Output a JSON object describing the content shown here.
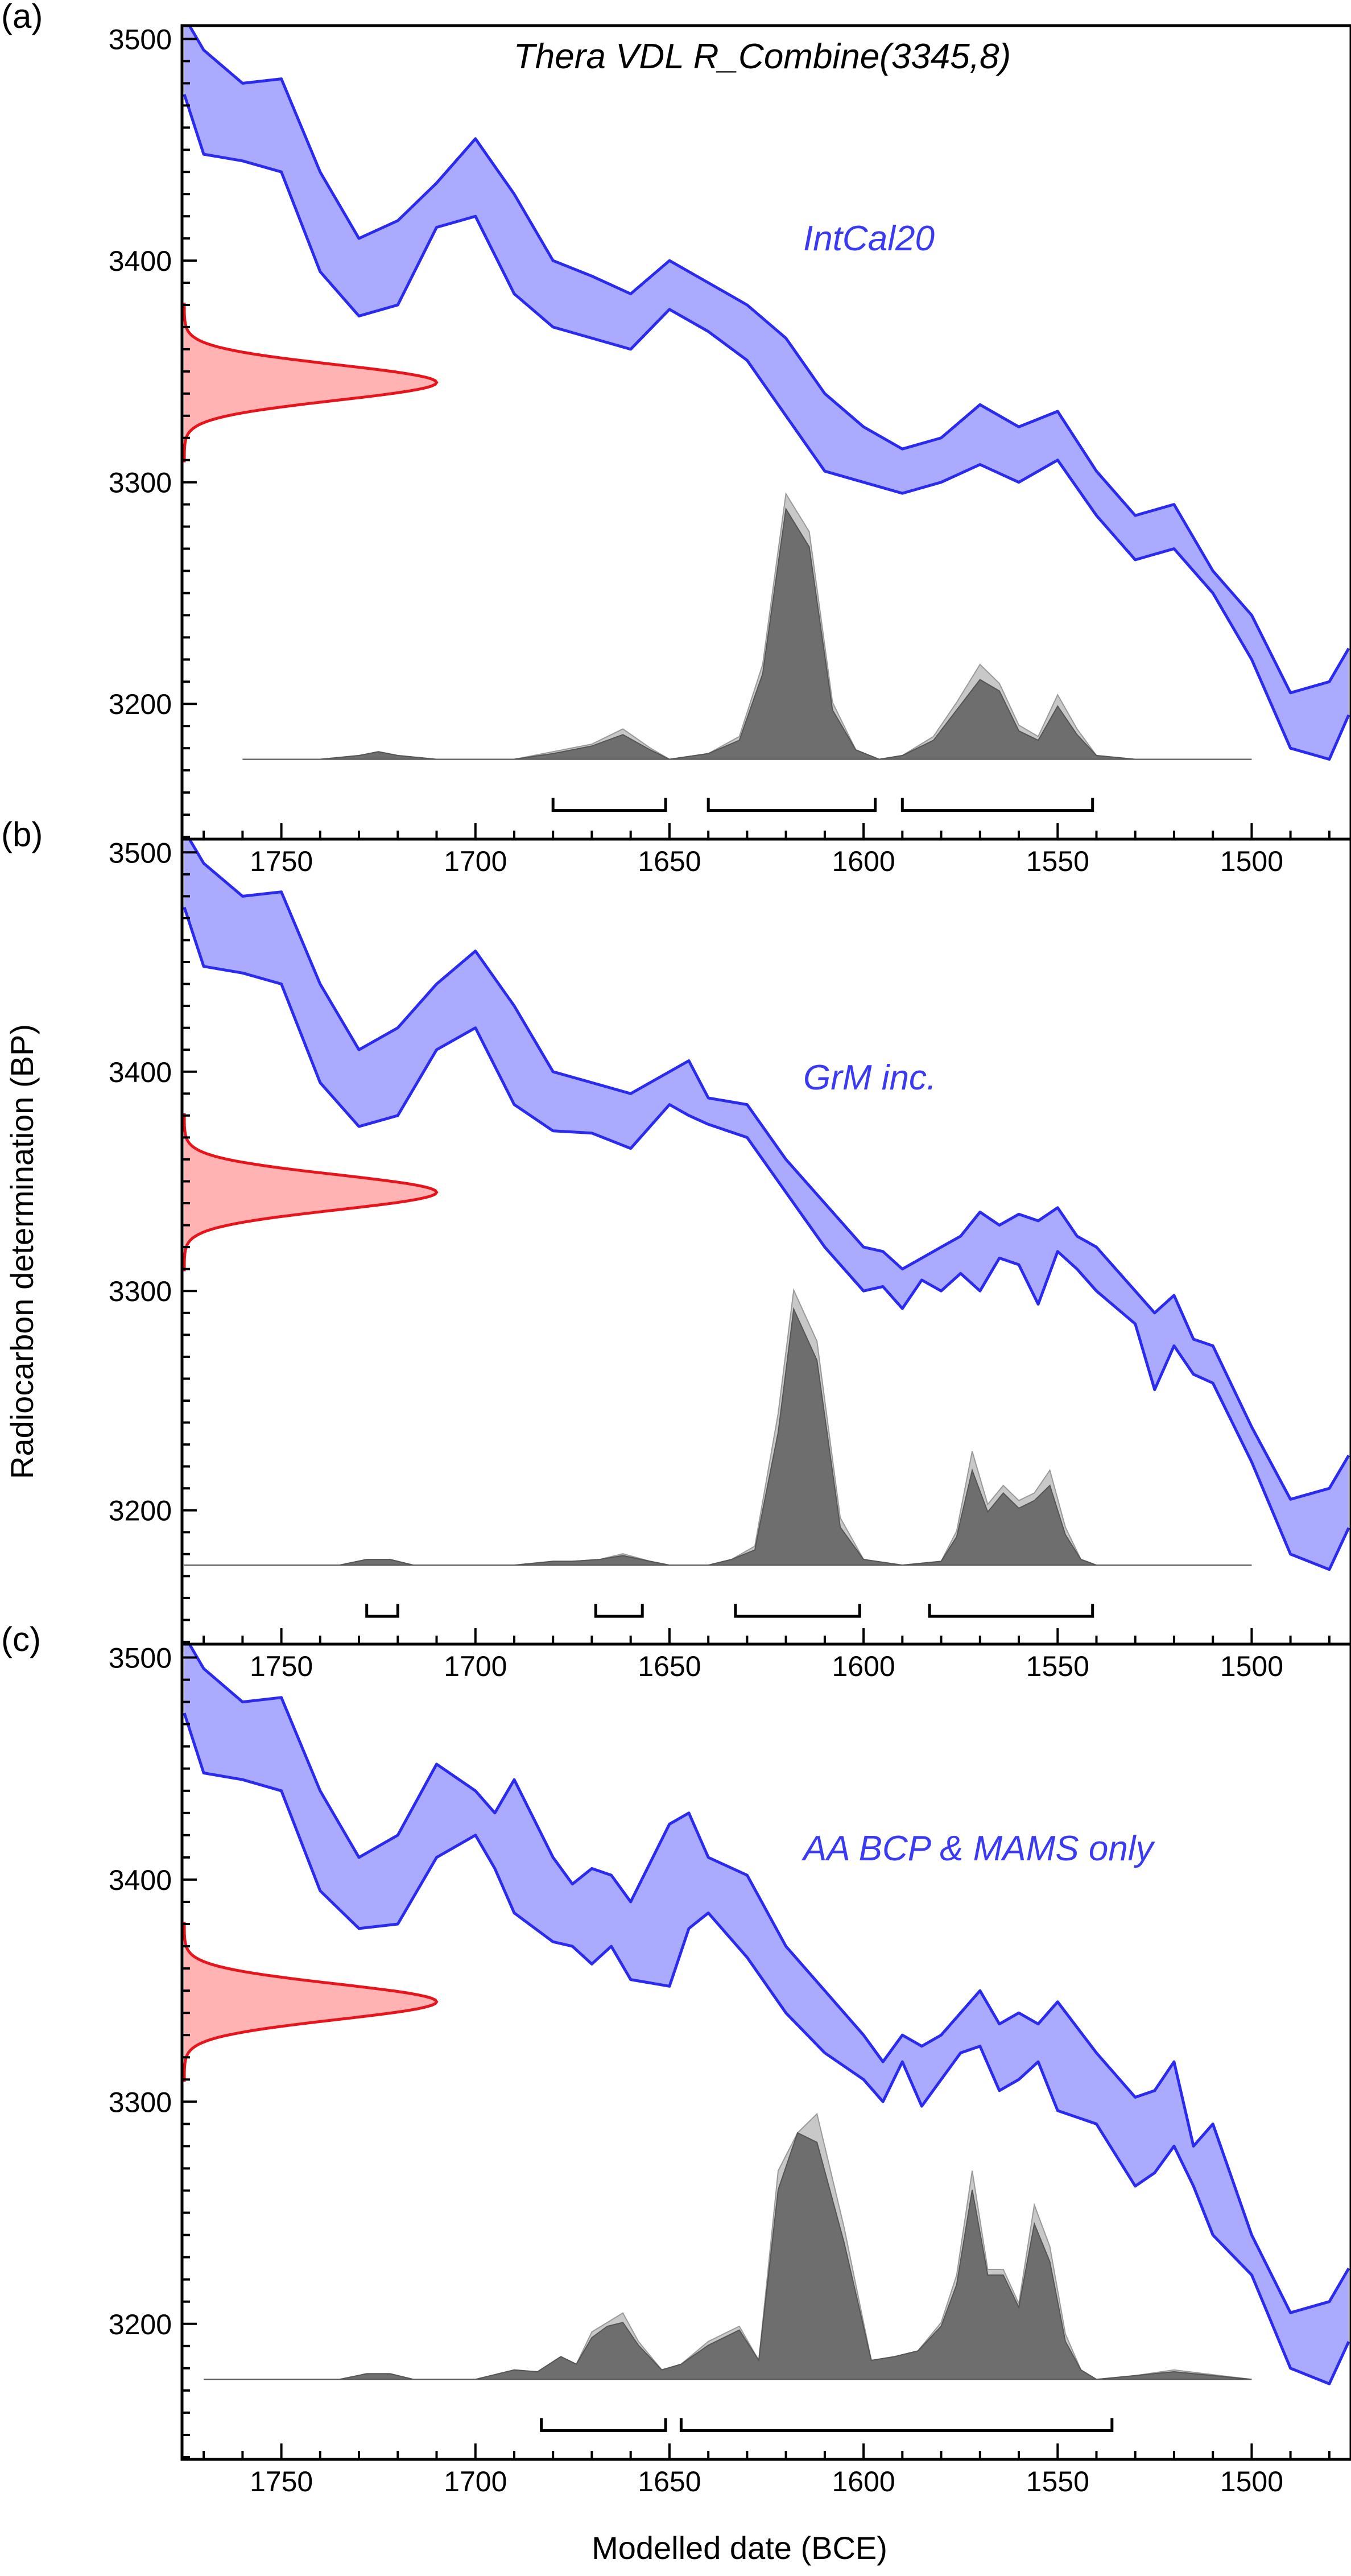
{
  "figure": {
    "xlabel": "Modelled date (BCE)",
    "ylabel": "Radiocarbon determination (BP)"
  },
  "colors": {
    "curve_fill": "#aaaaff",
    "curve_line": "#2a2af0",
    "curve_label": "#3a3af5",
    "gaussian_fill": "#ffb3b3",
    "gaussian_line": "#e8141b",
    "prior_fill": "#c8c8c8",
    "posterior_fill": "#6e6e6e",
    "axis": "#000000"
  },
  "chart_data": [
    {
      "type": "area",
      "panel": "(a)",
      "title": "Thera VDL R_Combine(3345,8)",
      "curve_label": "IntCal20",
      "xlim": [
        1775,
        1475
      ],
      "ylim": [
        3140,
        3505
      ],
      "x_ticks": [
        1750,
        1700,
        1650,
        1600,
        1550,
        1500
      ],
      "y_ticks": [
        3200,
        3300,
        3400,
        3500
      ],
      "measurement": {
        "mean": 3345,
        "sigma": 8
      },
      "calibration_curve": {
        "x": [
          1775,
          1770,
          1760,
          1750,
          1740,
          1730,
          1720,
          1710,
          1700,
          1690,
          1680,
          1670,
          1660,
          1650,
          1640,
          1630,
          1620,
          1610,
          1600,
          1590,
          1580,
          1570,
          1560,
          1550,
          1540,
          1530,
          1520,
          1510,
          1500,
          1490,
          1480,
          1475
        ],
        "upper": [
          3510,
          3495,
          3480,
          3482,
          3440,
          3410,
          3418,
          3435,
          3455,
          3430,
          3400,
          3393,
          3385,
          3400,
          3390,
          3380,
          3365,
          3340,
          3325,
          3315,
          3320,
          3335,
          3325,
          3332,
          3305,
          3285,
          3290,
          3260,
          3240,
          3205,
          3210,
          3225
        ],
        "lower": [
          3475,
          3448,
          3445,
          3440,
          3395,
          3375,
          3380,
          3415,
          3420,
          3385,
          3370,
          3365,
          3360,
          3378,
          3368,
          3355,
          3330,
          3305,
          3300,
          3295,
          3300,
          3308,
          3300,
          3310,
          3285,
          3265,
          3270,
          3250,
          3220,
          3180,
          3175,
          3195
        ]
      },
      "distribution": {
        "x": [
          1760,
          1740,
          1730,
          1725,
          1720,
          1710,
          1690,
          1680,
          1670,
          1662,
          1655,
          1650,
          1640,
          1632,
          1626,
          1620,
          1614,
          1608,
          1602,
          1596,
          1590,
          1582,
          1576,
          1570,
          1565,
          1560,
          1555,
          1550,
          1545,
          1540,
          1530,
          1520,
          1500
        ],
        "prior": [
          0,
          0,
          2,
          4,
          2,
          0,
          0,
          4,
          8,
          16,
          6,
          0,
          3,
          12,
          50,
          140,
          120,
          30,
          5,
          0,
          2,
          12,
          30,
          50,
          40,
          18,
          12,
          34,
          16,
          2,
          0,
          0,
          0
        ],
        "posterior": [
          0,
          0,
          2,
          4,
          2,
          0,
          0,
          3,
          7,
          13,
          5,
          0,
          3,
          10,
          45,
          132,
          112,
          26,
          5,
          0,
          2,
          10,
          26,
          42,
          36,
          15,
          10,
          28,
          13,
          2,
          0,
          0,
          0
        ]
      },
      "ranges": [
        [
          1680,
          1651
        ],
        [
          1640,
          1597
        ],
        [
          1590,
          1541
        ]
      ]
    },
    {
      "type": "area",
      "panel": "(b)",
      "title": "",
      "curve_label": "GrM inc.",
      "xlim": [
        1775,
        1475
      ],
      "ylim": [
        3140,
        3505
      ],
      "x_ticks": [
        1750,
        1700,
        1650,
        1600,
        1550,
        1500
      ],
      "y_ticks": [
        3200,
        3300,
        3400,
        3500
      ],
      "measurement": {
        "mean": 3345,
        "sigma": 8
      },
      "calibration_curve": {
        "x": [
          1775,
          1770,
          1760,
          1750,
          1740,
          1730,
          1720,
          1710,
          1700,
          1690,
          1680,
          1670,
          1660,
          1650,
          1645,
          1640,
          1630,
          1620,
          1610,
          1600,
          1595,
          1590,
          1585,
          1580,
          1575,
          1570,
          1565,
          1560,
          1555,
          1550,
          1545,
          1540,
          1530,
          1525,
          1520,
          1515,
          1510,
          1500,
          1490,
          1480,
          1475
        ],
        "upper": [
          3510,
          3495,
          3480,
          3482,
          3440,
          3410,
          3420,
          3440,
          3455,
          3430,
          3400,
          3395,
          3390,
          3400,
          3405,
          3388,
          3385,
          3360,
          3340,
          3320,
          3318,
          3310,
          3315,
          3320,
          3325,
          3336,
          3330,
          3335,
          3332,
          3338,
          3325,
          3320,
          3300,
          3290,
          3298,
          3278,
          3275,
          3238,
          3205,
          3210,
          3225
        ],
        "lower": [
          3475,
          3448,
          3445,
          3440,
          3395,
          3375,
          3380,
          3410,
          3420,
          3385,
          3373,
          3372,
          3365,
          3385,
          3380,
          3376,
          3370,
          3345,
          3320,
          3300,
          3302,
          3292,
          3305,
          3300,
          3308,
          3300,
          3315,
          3312,
          3294,
          3318,
          3310,
          3300,
          3285,
          3255,
          3275,
          3262,
          3258,
          3222,
          3180,
          3173,
          3192
        ]
      },
      "distribution": {
        "x": [
          1775,
          1735,
          1728,
          1722,
          1716,
          1700,
          1690,
          1680,
          1675,
          1668,
          1662,
          1655,
          1650,
          1640,
          1634,
          1628,
          1622,
          1618,
          1612,
          1606,
          1600,
          1590,
          1580,
          1576,
          1572,
          1568,
          1564,
          1560,
          1556,
          1552,
          1548,
          1544,
          1540,
          1500
        ],
        "prior": [
          0,
          0,
          3,
          3,
          0,
          0,
          0,
          2,
          2,
          3,
          6,
          2,
          0,
          0,
          3,
          10,
          80,
          145,
          118,
          25,
          3,
          0,
          2,
          18,
          60,
          32,
          42,
          34,
          38,
          50,
          20,
          3,
          0,
          0
        ],
        "posterior": [
          0,
          0,
          3,
          3,
          0,
          0,
          0,
          2,
          2,
          3,
          5,
          2,
          0,
          0,
          3,
          8,
          70,
          135,
          108,
          20,
          3,
          0,
          2,
          15,
          50,
          28,
          38,
          30,
          34,
          42,
          16,
          3,
          0,
          0
        ]
      },
      "ranges": [
        [
          1728,
          1720
        ],
        [
          1669,
          1657
        ],
        [
          1633,
          1601
        ],
        [
          1583,
          1541
        ]
      ]
    },
    {
      "type": "area",
      "panel": "(c)",
      "title": "",
      "curve_label": "AA BCP & MAMS only",
      "xlim": [
        1775,
        1475
      ],
      "ylim": [
        3140,
        3505
      ],
      "x_ticks": [
        1750,
        1700,
        1650,
        1600,
        1550,
        1500
      ],
      "y_ticks": [
        3200,
        3300,
        3400,
        3500
      ],
      "measurement": {
        "mean": 3345,
        "sigma": 8
      },
      "calibration_curve": {
        "x": [
          1775,
          1770,
          1760,
          1750,
          1740,
          1730,
          1720,
          1710,
          1700,
          1695,
          1690,
          1680,
          1675,
          1670,
          1665,
          1660,
          1650,
          1645,
          1640,
          1630,
          1620,
          1610,
          1600,
          1595,
          1590,
          1585,
          1580,
          1575,
          1570,
          1565,
          1560,
          1555,
          1550,
          1540,
          1530,
          1525,
          1520,
          1515,
          1510,
          1500,
          1490,
          1480,
          1475
        ],
        "upper": [
          3510,
          3495,
          3480,
          3482,
          3440,
          3410,
          3420,
          3452,
          3440,
          3430,
          3445,
          3410,
          3398,
          3405,
          3402,
          3390,
          3425,
          3430,
          3410,
          3402,
          3370,
          3350,
          3330,
          3318,
          3330,
          3325,
          3330,
          3340,
          3350,
          3335,
          3340,
          3335,
          3345,
          3322,
          3302,
          3305,
          3318,
          3280,
          3290,
          3240,
          3205,
          3210,
          3225
        ],
        "lower": [
          3475,
          3448,
          3445,
          3440,
          3395,
          3378,
          3380,
          3410,
          3420,
          3405,
          3385,
          3372,
          3370,
          3362,
          3370,
          3355,
          3352,
          3378,
          3385,
          3365,
          3340,
          3322,
          3310,
          3300,
          3318,
          3298,
          3310,
          3322,
          3325,
          3305,
          3310,
          3318,
          3296,
          3290,
          3262,
          3268,
          3280,
          3262,
          3240,
          3222,
          3180,
          3173,
          3192
        ]
      },
      "distribution": {
        "x": [
          1770,
          1735,
          1728,
          1722,
          1716,
          1700,
          1690,
          1684,
          1678,
          1674,
          1670,
          1666,
          1662,
          1658,
          1652,
          1647,
          1640,
          1632,
          1627,
          1622,
          1617,
          1612,
          1605,
          1598,
          1592,
          1586,
          1580,
          1576,
          1572,
          1568,
          1564,
          1560,
          1556,
          1552,
          1548,
          1544,
          1540,
          1530,
          1520,
          1500
        ],
        "prior": [
          0,
          0,
          3,
          3,
          0,
          0,
          5,
          4,
          12,
          8,
          25,
          30,
          35,
          20,
          5,
          8,
          20,
          28,
          10,
          110,
          130,
          140,
          80,
          10,
          12,
          15,
          30,
          55,
          110,
          58,
          58,
          40,
          92,
          70,
          24,
          5,
          0,
          2,
          5,
          0
        ],
        "posterior": [
          0,
          0,
          3,
          3,
          0,
          0,
          5,
          4,
          12,
          8,
          22,
          28,
          30,
          18,
          5,
          8,
          18,
          26,
          10,
          100,
          130,
          125,
          72,
          10,
          12,
          15,
          28,
          50,
          100,
          55,
          55,
          38,
          82,
          62,
          20,
          5,
          0,
          2,
          4,
          0
        ]
      },
      "ranges": [
        [
          1683,
          1651
        ],
        [
          1647,
          1536
        ]
      ]
    }
  ]
}
